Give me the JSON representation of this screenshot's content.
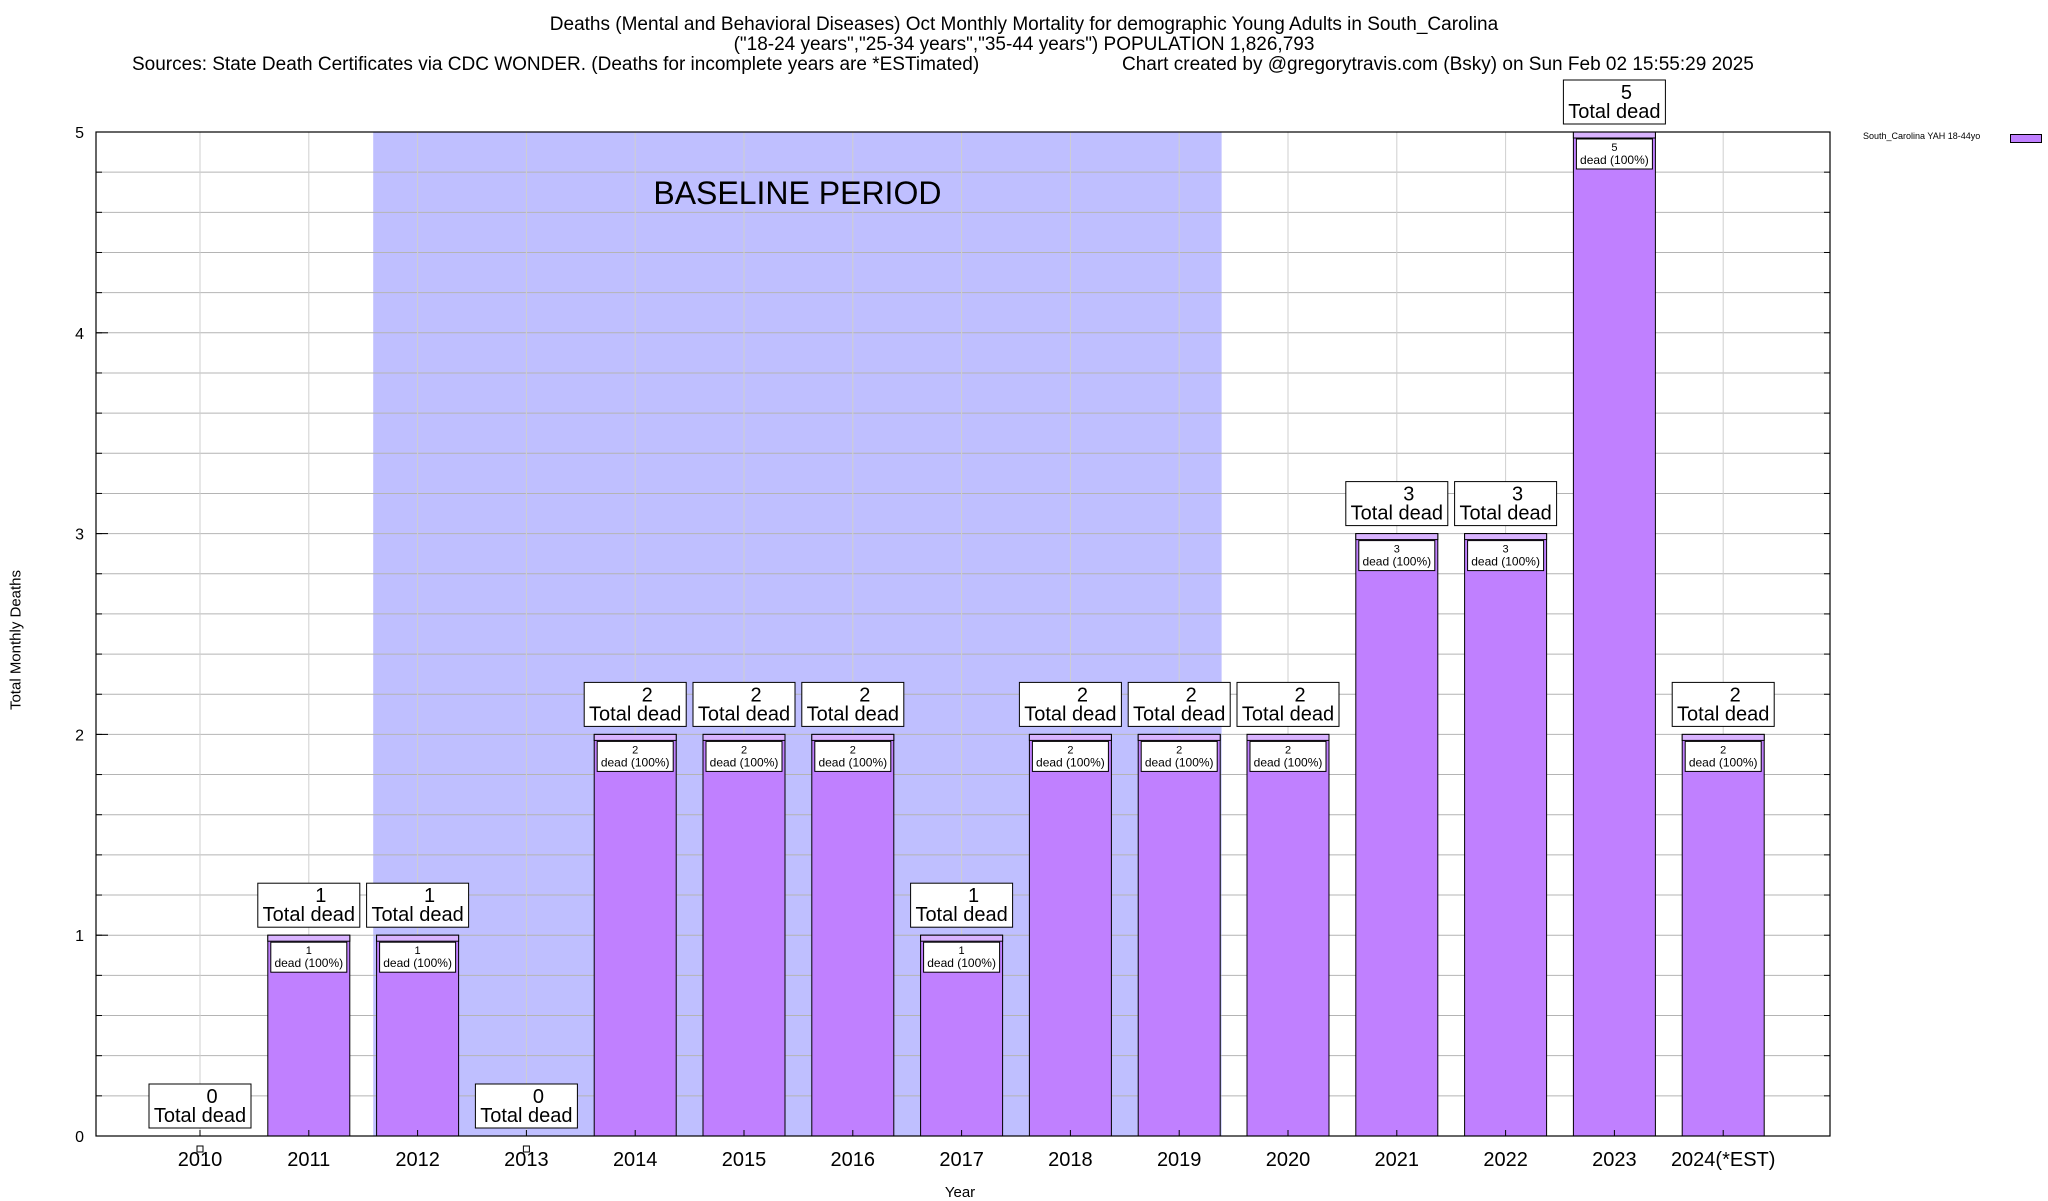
{
  "chart_data": {
    "type": "bar",
    "title": "Deaths (Mental and Behavioral Diseases) Oct Monthly Mortality for demographic Young Adults in South_Carolina",
    "subtitle": "(\"18-24 years\",\"25-34 years\",\"35-44 years\") POPULATION 1,826,793",
    "sources": "Sources: State Death Certificates via CDC WONDER. (Deaths for incomplete years are *ESTimated)",
    "credit": "Chart created by @gregorytravis.com (Bsky) on Sun Feb 02 15:55:29 2025",
    "xlabel": "Year",
    "ylabel": "Total Monthly Deaths",
    "ylim": [
      0,
      5
    ],
    "yticks": [
      0,
      1,
      2,
      3,
      4,
      5
    ],
    "minor_grid_step": 0.2,
    "grid": true,
    "categories": [
      "2010",
      "2011",
      "2012",
      "2013",
      "2014",
      "2015",
      "2016",
      "2017",
      "2018",
      "2019",
      "2020",
      "2021",
      "2022",
      "2023",
      "2024(*EST)"
    ],
    "series": [
      {
        "name": "South_Carolina YAH 18-44yo",
        "color": "#c080ff",
        "values": [
          0,
          1,
          1,
          0,
          2,
          2,
          2,
          1,
          2,
          2,
          2,
          3,
          3,
          5,
          2
        ]
      }
    ],
    "total_label_suffix": "Total dead",
    "segment_label_suffix": "dead (100%)",
    "baseline": {
      "label": "BASELINE PERIOD",
      "from": "2012",
      "to": "2019",
      "color": "#bfbfff"
    },
    "legend_position": "top-right"
  }
}
